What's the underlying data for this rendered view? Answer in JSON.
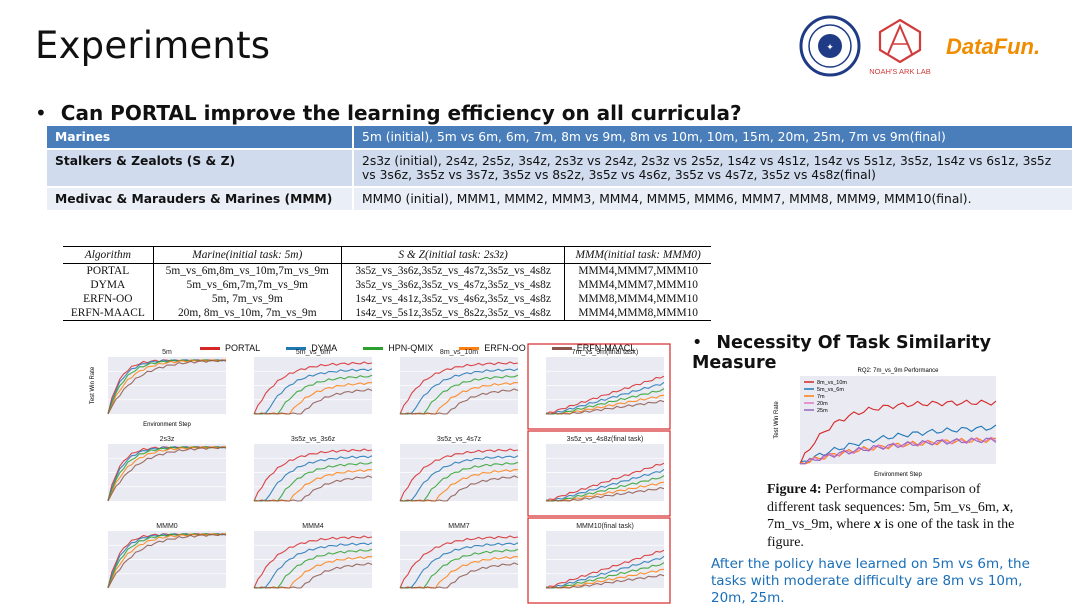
{
  "header": {
    "title": "Experiments",
    "logos": {
      "university_seal": "",
      "noahs_ark": "NOAH'S ARK LAB",
      "datafun": "DataFun."
    }
  },
  "bullet1": "Can PORTAL improve the learning efficiency on all curricula?",
  "curricula": [
    {
      "name": "Marines",
      "tasks": "5m (initial), 5m vs 6m, 6m, 7m, 8m vs 9m, 8m vs 10m, 10m, 15m, 20m, 25m, 7m vs 9m(final)"
    },
    {
      "name": "Stalkers & Zealots (S & Z)",
      "tasks": "2s3z (initial), 2s4z, 2s5z, 3s4z, 2s3z vs 2s4z, 2s3z vs 2s5z, 1s4z vs 4s1z, 1s4z vs 5s1z, 3s5z, 1s4z vs 6s1z, 3s5z vs 3s6z, 3s5z vs 3s7z,  3s5z vs 8s2z, 3s5z vs 4s6z, 3s5z vs 4s7z, 3s5z vs 4s8z(final)"
    },
    {
      "name": "Medivac & Marauders & Marines (MMM)",
      "tasks": "MMM0 (initial), MMM1, MMM2, MMM3, MMM4, MMM5, MMM6, MMM7, MMM8, MMM9, MMM10(final)."
    }
  ],
  "order_table": {
    "headers": [
      "Algorithm",
      "Marine(initial task: 5m)",
      "S & Z(initial task: 2s3z)",
      "MMM(initial task: MMM0)"
    ],
    "rows": [
      [
        "PORTAL",
        "5m_vs_6m,8m_vs_10m,7m_vs_9m",
        "3s5z_vs_3s6z,3s5z_vs_4s7z,3s5z_vs_4s8z",
        "MMM4,MMM7,MMM10"
      ],
      [
        "DYMA",
        "5m_vs_6m,7m,7m_vs_9m",
        "3s5z_vs_3s6z,3s5z_vs_4s7z,3s5z_vs_4s8z",
        "MMM4,MMM7,MMM10"
      ],
      [
        "ERFN-OO",
        "5m, 7m_vs_9m",
        "1s4z_vs_4s1z,3s5z_vs_4s6z,3s5z_vs_4s8z",
        "MMM8,MMM4,MMM10"
      ],
      [
        "ERFN-MAACL",
        "20m, 8m_vs_10m, 7m_vs_9m",
        "1s4z_vs_5s1z,3s5z_vs_8s2z,3s5z_vs_4s8z",
        "MMM4,MMM8,MMM10"
      ]
    ]
  },
  "legend": [
    {
      "name": "PORTAL",
      "color": "#d62728"
    },
    {
      "name": "DYMA",
      "color": "#1f77b4"
    },
    {
      "name": "HPN-QMIX",
      "color": "#2ca02c"
    },
    {
      "name": "ERFN-OO",
      "color": "#ff7f0e"
    },
    {
      "name": "ERFN-MAACL",
      "color": "#8c564b"
    }
  ],
  "panels": [
    "5m",
    "5m_vs_6m",
    "8m_vs_10m",
    "7m_vs_9m(final task)",
    "2s3z",
    "3s5z_vs_3s6z",
    "3s5z_vs_4s7z",
    "3s5z_vs_4s8z(final task)",
    "MMM0",
    "MMM4",
    "MMM7",
    "MMM10(final task)"
  ],
  "panel_labels": {
    "ylabel": "Test Win Rate",
    "xlabel": "Environment Step",
    "xscale": "1e6",
    "xscale7": "1e7"
  },
  "bullet2": "Necessity Of Task Similarity Measure",
  "fig4": {
    "title": "RQ2: 7m_vs_9m Performance",
    "ylabel": "Test Win Rate",
    "xlabel": "Environment Step",
    "series": [
      {
        "name": "8m_vs_10m",
        "color": "#d62728"
      },
      {
        "name": "5m_vs_6m",
        "color": "#1f77b4"
      },
      {
        "name": "7m",
        "color": "#ff7f0e"
      },
      {
        "name": "20m",
        "color": "#e377c2"
      },
      {
        "name": "25m",
        "color": "#9467bd"
      }
    ]
  },
  "caption": {
    "label": "Figure 4:",
    "text1": " Performance comparison of different task sequences: 5m, 5m_vs_6m, ",
    "x1": "x",
    "text2": ", 7m_vs_9m, where ",
    "x2": "x",
    "text3": " is one of the task in the figure."
  },
  "note": "After the policy have learned on 5m vs 6m, the tasks with moderate difficulty are 8m vs 10m, 20m, 25m."
}
